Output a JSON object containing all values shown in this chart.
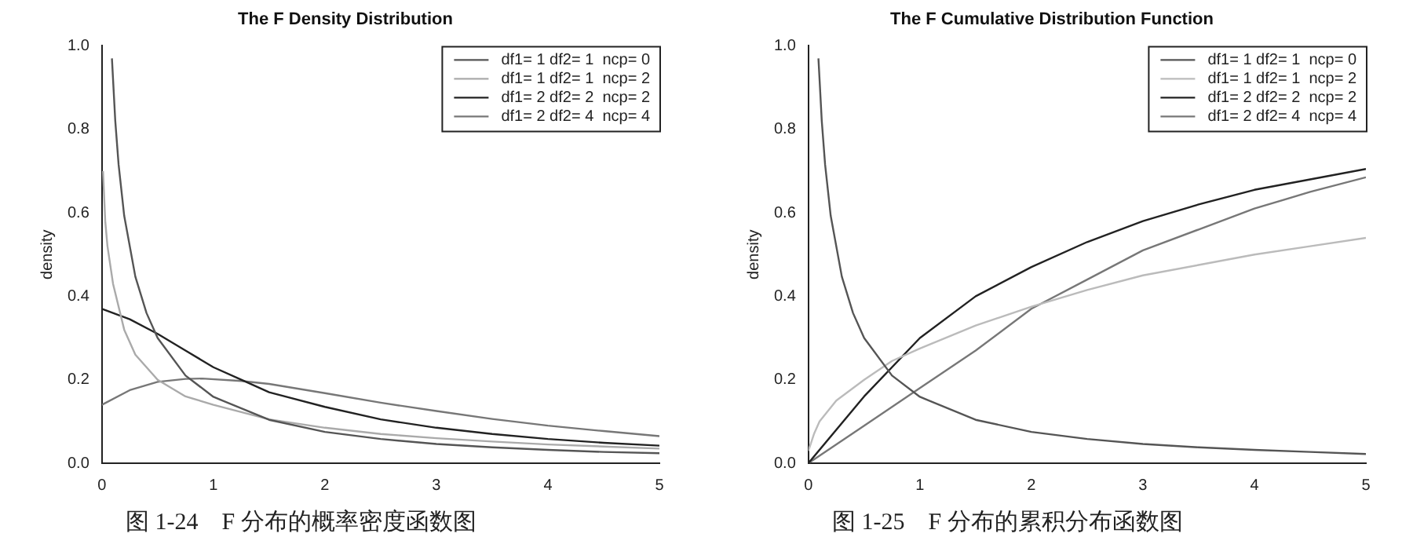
{
  "chart_data": [
    {
      "type": "line",
      "title": "The F Density Distribution",
      "ylabel": "density",
      "xlim": [
        0,
        5
      ],
      "xticks": [
        0,
        1,
        2,
        3,
        4,
        5
      ],
      "ylim": [
        0,
        1
      ],
      "yticks": [
        {
          "value": 0,
          "label": "0.0"
        },
        {
          "value": 0.2,
          "label": "0.2"
        },
        {
          "value": 0.4,
          "label": "0.4"
        },
        {
          "value": 0.6,
          "label": "0.6"
        },
        {
          "value": 0.8,
          "label": "0.8"
        },
        {
          "value": 1,
          "label": "1.0"
        }
      ],
      "legend": "top right",
      "marker": "none",
      "line_style": "solid",
      "annotations": [
        "图 1-24　F 分布的概率密度函数图"
      ],
      "series": [
        {
          "name": "df1= 1 df2= 1  ncp= 0",
          "color": "#555555",
          "x": [
            0.09,
            0.12,
            0.15,
            0.2,
            0.3,
            0.4,
            0.5,
            0.75,
            1,
            1.5,
            2,
            2.5,
            3,
            3.5,
            4,
            4.5,
            5
          ],
          "values": [
            0.97,
            0.82,
            0.715,
            0.593,
            0.447,
            0.36,
            0.3,
            0.21,
            0.159,
            0.104,
            0.075,
            0.058,
            0.046,
            0.038,
            0.032,
            0.027,
            0.024
          ]
        },
        {
          "name": "df1= 1 df2= 1  ncp= 2",
          "color": "#aaaaaa",
          "x": [
            0.01,
            0.03,
            0.05,
            0.1,
            0.2,
            0.3,
            0.5,
            0.75,
            1,
            1.5,
            2,
            2.5,
            3,
            3.5,
            4,
            4.5,
            5
          ],
          "values": [
            0.7,
            0.58,
            0.52,
            0.43,
            0.32,
            0.26,
            0.2,
            0.16,
            0.14,
            0.105,
            0.085,
            0.07,
            0.06,
            0.052,
            0.045,
            0.04,
            0.035
          ]
        },
        {
          "name": "df1= 2 df2= 2  ncp= 2",
          "color": "#222222",
          "x": [
            0,
            0.25,
            0.5,
            0.75,
            1,
            1.25,
            1.5,
            2,
            2.5,
            3,
            3.5,
            4,
            4.5,
            5
          ],
          "values": [
            0.37,
            0.345,
            0.31,
            0.27,
            0.23,
            0.2,
            0.17,
            0.135,
            0.105,
            0.085,
            0.07,
            0.058,
            0.049,
            0.042
          ]
        },
        {
          "name": "df1= 2 df2= 4  ncp= 4",
          "color": "#777777",
          "x": [
            0,
            0.25,
            0.5,
            0.75,
            0.9,
            1.25,
            1.5,
            2,
            2.5,
            3,
            3.5,
            4,
            4.5,
            5
          ],
          "values": [
            0.14,
            0.175,
            0.195,
            0.202,
            0.203,
            0.197,
            0.19,
            0.168,
            0.145,
            0.125,
            0.106,
            0.09,
            0.077,
            0.065
          ]
        }
      ]
    },
    {
      "type": "line",
      "title": "The F Cumulative Distribution Function",
      "ylabel": "density",
      "xlim": [
        0,
        5
      ],
      "xticks": [
        0,
        1,
        2,
        3,
        4,
        5
      ],
      "ylim": [
        0,
        1
      ],
      "yticks": [
        {
          "value": 0,
          "label": "0.0"
        },
        {
          "value": 0.2,
          "label": "0.2"
        },
        {
          "value": 0.4,
          "label": "0.4"
        },
        {
          "value": 0.6,
          "label": "0.6"
        },
        {
          "value": 0.8,
          "label": "0.8"
        },
        {
          "value": 1,
          "label": "1.0"
        }
      ],
      "legend": "top right",
      "marker": "none",
      "line_style": "solid",
      "annotations": [
        "图 1-25　F 分布的累积分布函数图"
      ],
      "series": [
        {
          "name": "df1= 1 df2= 1  ncp= 0",
          "color": "#555555",
          "x": [
            0.09,
            0.12,
            0.15,
            0.2,
            0.3,
            0.4,
            0.5,
            0.75,
            1,
            1.5,
            2,
            2.5,
            3,
            3.5,
            4,
            4.5,
            5
          ],
          "values": [
            0.97,
            0.82,
            0.715,
            0.593,
            0.447,
            0.36,
            0.3,
            0.21,
            0.159,
            0.104,
            0.075,
            0.058,
            0.046,
            0.038,
            0.032,
            0.027,
            0.022
          ]
        },
        {
          "name": "df1= 1 df2= 1  ncp= 2",
          "color": "#bbbbbb",
          "x": [
            0,
            0.05,
            0.1,
            0.25,
            0.5,
            0.75,
            1,
            1.5,
            2,
            2.5,
            3,
            3.5,
            4,
            4.5,
            5
          ],
          "values": [
            0.03,
            0.07,
            0.1,
            0.15,
            0.2,
            0.245,
            0.275,
            0.33,
            0.375,
            0.415,
            0.45,
            0.475,
            0.5,
            0.52,
            0.54
          ]
        },
        {
          "name": "df1= 2 df2= 2  ncp= 2",
          "color": "#222222",
          "x": [
            0,
            0.5,
            1,
            1.5,
            2,
            2.5,
            3,
            3.5,
            4,
            4.5,
            5
          ],
          "values": [
            0,
            0.16,
            0.3,
            0.4,
            0.47,
            0.53,
            0.58,
            0.62,
            0.655,
            0.68,
            0.705
          ]
        },
        {
          "name": "df1= 2 df2= 4  ncp= 4",
          "color": "#777777",
          "x": [
            0,
            0.5,
            1,
            1.5,
            2,
            2.5,
            3,
            3.5,
            4,
            4.5,
            5
          ],
          "values": [
            0,
            0.09,
            0.18,
            0.27,
            0.37,
            0.44,
            0.51,
            0.56,
            0.61,
            0.65,
            0.685
          ]
        }
      ]
    }
  ]
}
